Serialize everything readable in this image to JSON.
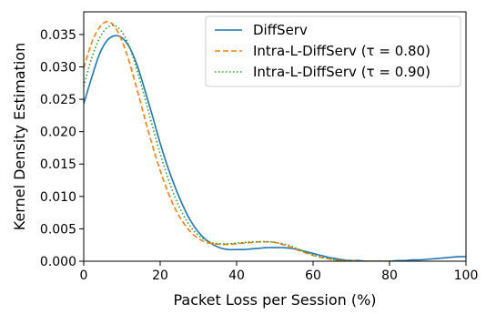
{
  "chart_data": {
    "type": "line",
    "title": "",
    "xlabel": "Packet Loss per Session (%)",
    "ylabel": "Kernel Density Estimation",
    "xlim": [
      0,
      100
    ],
    "ylim": [
      0,
      0.0385
    ],
    "xticks": [
      0,
      20,
      40,
      60,
      80,
      100
    ],
    "xtick_labels": [
      "0",
      "20",
      "40",
      "60",
      "80",
      "100"
    ],
    "yticks": [
      0,
      0.005,
      0.01,
      0.015,
      0.02,
      0.025,
      0.03,
      0.035
    ],
    "ytick_labels": [
      "0.000",
      "0.005",
      "0.010",
      "0.015",
      "0.020",
      "0.025",
      "0.030",
      "0.035"
    ],
    "grid": false,
    "legend_position": "top-right",
    "series": [
      {
        "name": "DiffServ",
        "color": "#1f77b4",
        "style": "solid",
        "x": [
          0,
          2,
          4,
          6,
          8,
          10,
          12,
          14,
          16,
          18,
          20,
          22,
          24,
          26,
          28,
          30,
          32,
          34,
          36,
          38,
          40,
          42,
          44,
          46,
          48,
          50,
          52,
          54,
          56,
          58,
          60,
          62,
          64,
          66,
          68,
          70,
          72,
          74,
          76,
          78,
          80,
          82,
          84,
          86,
          88,
          90,
          92,
          94,
          96,
          98,
          100
        ],
        "y": [
          0.0243,
          0.0282,
          0.0318,
          0.034,
          0.0348,
          0.0345,
          0.033,
          0.0302,
          0.0264,
          0.0224,
          0.0182,
          0.0145,
          0.0113,
          0.0085,
          0.0062,
          0.0045,
          0.0033,
          0.0025,
          0.002,
          0.0018,
          0.0018,
          0.0018,
          0.0019,
          0.002,
          0.0021,
          0.0021,
          0.0021,
          0.002,
          0.0018,
          0.0015,
          0.0012,
          0.0009,
          0.0006,
          0.0004,
          0.0002,
          0.0001,
          0.0001,
          0.0,
          0.0,
          0.0,
          0.0,
          0.0001,
          0.0001,
          0.0002,
          0.0002,
          0.0003,
          0.0004,
          0.0005,
          0.0006,
          0.0007,
          0.0007
        ]
      },
      {
        "name": "Intra-L-DiffServ (τ = 0.80)",
        "color": "#ff7f0e",
        "style": "dashed",
        "x": [
          0,
          2,
          4,
          6,
          8,
          10,
          12,
          14,
          16,
          18,
          20,
          22,
          24,
          26,
          28,
          30,
          32,
          34,
          36,
          38,
          40,
          42,
          44,
          46,
          48,
          50,
          52,
          54,
          56,
          58,
          60,
          62,
          64,
          66,
          68,
          70,
          72,
          74,
          76,
          78,
          80
        ],
        "y": [
          0.0298,
          0.0336,
          0.036,
          0.037,
          0.0363,
          0.034,
          0.0306,
          0.0264,
          0.022,
          0.0178,
          0.014,
          0.0107,
          0.008,
          0.006,
          0.0045,
          0.0035,
          0.0029,
          0.0027,
          0.0026,
          0.0026,
          0.0027,
          0.0028,
          0.0029,
          0.003,
          0.003,
          0.0029,
          0.0026,
          0.0022,
          0.0017,
          0.0013,
          0.0009,
          0.0006,
          0.0004,
          0.0002,
          0.0001,
          0.0001,
          0.0,
          0.0,
          0.0,
          0.0,
          0.0
        ]
      },
      {
        "name": "Intra-L-DiffServ (τ = 0.90)",
        "color": "#2ca02c",
        "style": "dotted",
        "x": [
          0,
          2,
          4,
          6,
          8,
          10,
          12,
          14,
          16,
          18,
          20,
          22,
          24,
          26,
          28,
          30,
          32,
          34,
          36,
          38,
          40,
          42,
          44,
          46,
          48,
          50,
          52,
          54,
          56,
          58,
          60,
          62,
          64,
          66,
          68,
          70,
          72,
          74,
          76,
          78,
          80
        ],
        "y": [
          0.027,
          0.0312,
          0.0343,
          0.036,
          0.0364,
          0.0354,
          0.033,
          0.0294,
          0.0252,
          0.0208,
          0.0166,
          0.0129,
          0.0097,
          0.0072,
          0.0053,
          0.004,
          0.0032,
          0.0028,
          0.0027,
          0.0027,
          0.0028,
          0.0029,
          0.003,
          0.003,
          0.003,
          0.0029,
          0.0027,
          0.0024,
          0.0019,
          0.0014,
          0.001,
          0.0007,
          0.0004,
          0.0002,
          0.0001,
          0.0001,
          0.0,
          0.0,
          0.0,
          0.0,
          0.0
        ]
      }
    ]
  }
}
